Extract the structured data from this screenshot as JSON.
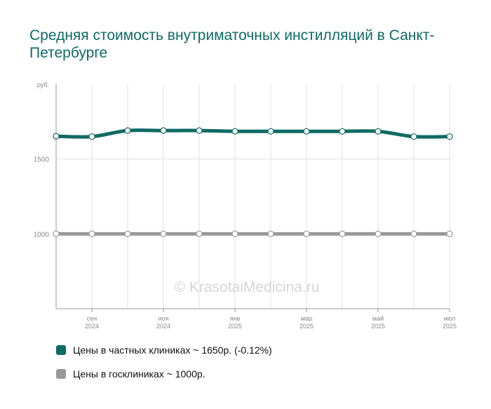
{
  "title": "Средняя стоимость внутриматочных инстилляций в Санкт-Петербурге",
  "watermark": "© KrasotaiMedicina.ru",
  "colors": {
    "private": "#0e6b63",
    "public": "#999999",
    "grid": "#e0e0e0",
    "axis": "#9a9a9a"
  },
  "legend": [
    {
      "label": "Цены в частных клиниках ~ 1650р. (-0.12%)",
      "color": "#0e6b63"
    },
    {
      "label": "Цены в госклиниках ~ 1000р.",
      "color": "#999999"
    }
  ],
  "chart_data": {
    "type": "line",
    "unit": "руб.",
    "ylim": [
      500,
      2000
    ],
    "yticks": [
      1000,
      1500
    ],
    "x_points": 12,
    "x_ticks": [
      {
        "index": 1,
        "label": "сен",
        "sub": "2024"
      },
      {
        "index": 3,
        "label": "ноя",
        "sub": "2024"
      },
      {
        "index": 5,
        "label": "янв",
        "sub": "2025"
      },
      {
        "index": 7,
        "label": "мар",
        "sub": "2025"
      },
      {
        "index": 9,
        "label": "май",
        "sub": "2025"
      },
      {
        "index": 11,
        "label": "июл",
        "sub": "2025"
      }
    ],
    "grid": true,
    "series": [
      {
        "key": "private",
        "values": [
          1652,
          1650,
          1690,
          1690,
          1690,
          1685,
          1685,
          1685,
          1685,
          1685,
          1650,
          1650
        ]
      },
      {
        "key": "public",
        "values": [
          1000,
          1000,
          1000,
          1000,
          1000,
          1000,
          1000,
          1000,
          1000,
          1000,
          1000,
          1000
        ]
      }
    ]
  }
}
